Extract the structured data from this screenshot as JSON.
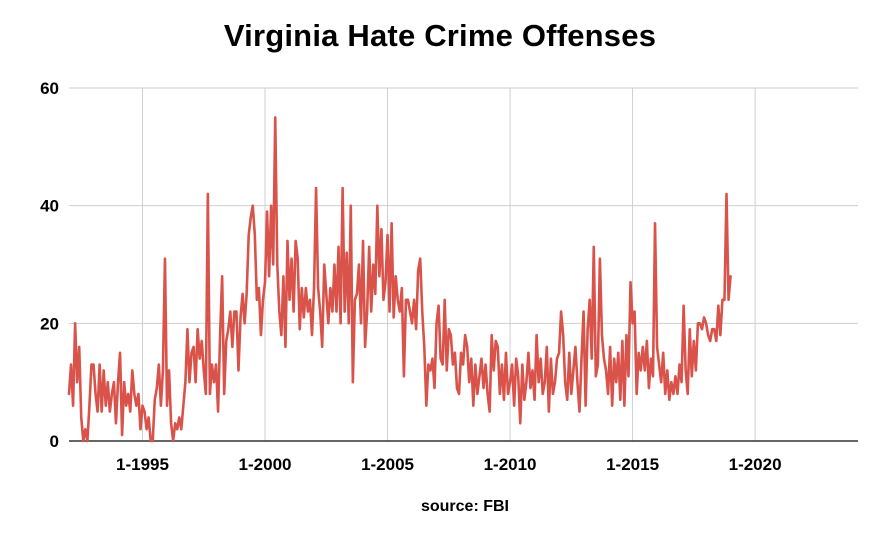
{
  "chart_data": {
    "type": "line",
    "title": "Virginia Hate Crime Offenses",
    "source": "source: FBI",
    "xlabel": "",
    "ylabel": "",
    "xlim": [
      1992.0,
      2024.2
    ],
    "ylim": [
      0,
      60
    ],
    "y_ticks": [
      0,
      20,
      40,
      60
    ],
    "x_ticks": [
      {
        "value": 1995,
        "label": "1-1995"
      },
      {
        "value": 2000,
        "label": "1-2000"
      },
      {
        "value": 2005,
        "label": "1-2005"
      },
      {
        "value": 2010,
        "label": "1-2010"
      },
      {
        "value": 2015,
        "label": "1-2015"
      },
      {
        "value": 2020,
        "label": "1-2020"
      }
    ],
    "grid": true,
    "line_color": "#d9534a",
    "series": [
      {
        "name": "Virginia Hate Crime Offenses",
        "start_year": 1992.0,
        "step_years": 0.0833333,
        "values": [
          8,
          13,
          6,
          20,
          10,
          16,
          4,
          0,
          2,
          0,
          6,
          13,
          13,
          8,
          5,
          13,
          5,
          12,
          6,
          10,
          5,
          8,
          10,
          3,
          10,
          15,
          1,
          10,
          6,
          8,
          5,
          12,
          8,
          6,
          8,
          2,
          6,
          5,
          2,
          4,
          0,
          0,
          7,
          9,
          13,
          6,
          12,
          31,
          6,
          12,
          3,
          0,
          3,
          2,
          4,
          2,
          6,
          10,
          19,
          10,
          15,
          16,
          10,
          19,
          14,
          17,
          12,
          8,
          42,
          8,
          13,
          10,
          13,
          5,
          18,
          28,
          8,
          17,
          19,
          22,
          16,
          22,
          22,
          12,
          21,
          25,
          20,
          25,
          35,
          38,
          40,
          35,
          24,
          26,
          18,
          24,
          27,
          39,
          28,
          40,
          30,
          55,
          30,
          22,
          18,
          28,
          16,
          34,
          24,
          31,
          22,
          34,
          31,
          19,
          26,
          21,
          26,
          22,
          24,
          18,
          26,
          43,
          26,
          22,
          16,
          30,
          25,
          20,
          26,
          22,
          30,
          22,
          33,
          20,
          43,
          22,
          32,
          20,
          40,
          10,
          24,
          25,
          30,
          20,
          34,
          16,
          22,
          33,
          22,
          30,
          25,
          40,
          28,
          36,
          24,
          27,
          35,
          22,
          37,
          21,
          28,
          24,
          22,
          26,
          11,
          24,
          24,
          22,
          20,
          24,
          19,
          29,
          31,
          22,
          16,
          6,
          13,
          12,
          14,
          9,
          20,
          23,
          14,
          13,
          24,
          12,
          19,
          18,
          13,
          15,
          9,
          8,
          15,
          13,
          18,
          16,
          10,
          14,
          6,
          13,
          8,
          11,
          14,
          9,
          13,
          8,
          5,
          18,
          12,
          17,
          16,
          8,
          13,
          7,
          15,
          8,
          10,
          13,
          6,
          14,
          11,
          3,
          13,
          7,
          10,
          15,
          9,
          12,
          7,
          18,
          10,
          14,
          8,
          10,
          16,
          5,
          14,
          8,
          10,
          14,
          15,
          22,
          18,
          10,
          7,
          15,
          8,
          12,
          16,
          10,
          5,
          14,
          22,
          6,
          19,
          24,
          14,
          33,
          11,
          13,
          31,
          18,
          14,
          12,
          8,
          16,
          6,
          14,
          10,
          15,
          7,
          17,
          6,
          18,
          11,
          27,
          20,
          22,
          8,
          15,
          12,
          16,
          12,
          17,
          9,
          14,
          11,
          37,
          16,
          13,
          10,
          15,
          8,
          12,
          7,
          10,
          8,
          11,
          8,
          13,
          10,
          23,
          12,
          8,
          19,
          11,
          17,
          12,
          20,
          20,
          19,
          21,
          20,
          18,
          17,
          19,
          19,
          17,
          23,
          18,
          24,
          24,
          42,
          24,
          28
        ]
      }
    ]
  }
}
